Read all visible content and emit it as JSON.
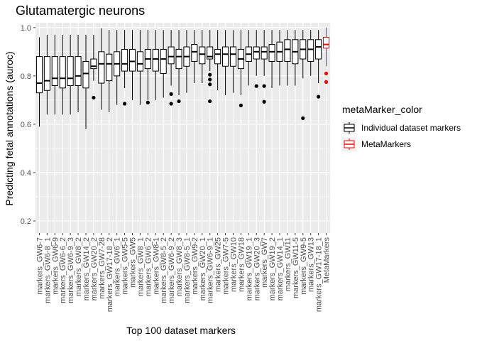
{
  "chart_data": {
    "type": "boxplot",
    "title": "Glutamatergic neurons",
    "xlabel": "Top 100 dataset markers",
    "ylabel": "Predicting fetal annotations (auroc)",
    "ylim": [
      0.15,
      1.02
    ],
    "yticks": [
      0.2,
      0.4,
      0.6,
      0.8,
      1.0
    ],
    "ytick_labels": [
      "0.2",
      "0.4",
      "0.6",
      "0.8",
      "1.0"
    ],
    "grid": true,
    "legend": {
      "title": "metaMarker_color",
      "placement": "right",
      "entries": [
        {
          "label": "Individual dataset markers",
          "color": "#000000"
        },
        {
          "label": "MetaMarkers",
          "color": "#ff0000"
        }
      ]
    },
    "categories": [
      "markers_GW6-7",
      "markers_GW6-8_1",
      "markers_GW6-9",
      "markers_GW6-6_2",
      "markers_GW6-9_3",
      "markers_GW8_2",
      "markers_GW14_2",
      "markers_GW20_2",
      "markers_GW7-28",
      "markers_GW17-18_2",
      "markers_GW6_1",
      "markers_GW5-5",
      "markers_GW5",
      "markers_GW8_1",
      "markers_GW6_2",
      "markers_GW8-1",
      "markers_GW8-5_2",
      "markers_GW6-9_2",
      "markers_GW8_3",
      "markers_GW8-5_1",
      "markers_GW9-2",
      "markers_GW20_1",
      "markers_GW6-9_1",
      "markers_GW25",
      "markers_GW7-5",
      "markers_GW10",
      "markers_GW18",
      "markers_GW19_1",
      "markers_GW20_3",
      "markers_GW7",
      "markers_GW19_2",
      "markers_GW14_1",
      "markers_GW11",
      "markers_GW11-5",
      "markers_GW9-5",
      "markers_GW13",
      "markers_GW17-18_1",
      "MetaMarkers"
    ],
    "series": [
      {
        "name": "Individual dataset markers",
        "color": "#000000",
        "boxes": [
          {
            "min": 0.59,
            "q1": 0.73,
            "median": 0.77,
            "q3": 0.88,
            "max": 0.96,
            "outliers": []
          },
          {
            "min": 0.64,
            "q1": 0.74,
            "median": 0.78,
            "q3": 0.88,
            "max": 0.97,
            "outliers": []
          },
          {
            "min": 0.64,
            "q1": 0.76,
            "median": 0.79,
            "q3": 0.88,
            "max": 0.97,
            "outliers": []
          },
          {
            "min": 0.64,
            "q1": 0.75,
            "median": 0.79,
            "q3": 0.88,
            "max": 0.97,
            "outliers": []
          },
          {
            "min": 0.64,
            "q1": 0.76,
            "median": 0.79,
            "q3": 0.88,
            "max": 0.97,
            "outliers": []
          },
          {
            "min": 0.65,
            "q1": 0.76,
            "median": 0.8,
            "q3": 0.88,
            "max": 0.97,
            "outliers": []
          },
          {
            "min": 0.58,
            "q1": 0.75,
            "median": 0.81,
            "q3": 0.86,
            "max": 0.97,
            "outliers": []
          },
          {
            "min": 0.78,
            "q1": 0.83,
            "median": 0.84,
            "q3": 0.87,
            "max": 0.97,
            "outliers": [
              0.71
            ]
          },
          {
            "min": 0.66,
            "q1": 0.77,
            "median": 0.85,
            "q3": 0.9,
            "max": 0.997,
            "outliers": []
          },
          {
            "min": 0.65,
            "q1": 0.78,
            "median": 0.85,
            "q3": 0.89,
            "max": 0.99,
            "outliers": []
          },
          {
            "min": 0.68,
            "q1": 0.8,
            "median": 0.85,
            "q3": 0.9,
            "max": 0.99,
            "outliers": []
          },
          {
            "min": 0.75,
            "q1": 0.82,
            "median": 0.85,
            "q3": 0.91,
            "max": 0.99,
            "outliers": [
              0.685
            ]
          },
          {
            "min": 0.7,
            "q1": 0.82,
            "median": 0.86,
            "q3": 0.91,
            "max": 0.99,
            "outliers": []
          },
          {
            "min": 0.68,
            "q1": 0.82,
            "median": 0.85,
            "q3": 0.9,
            "max": 0.99,
            "outliers": []
          },
          {
            "min": 0.7,
            "q1": 0.83,
            "median": 0.87,
            "q3": 0.91,
            "max": 0.99,
            "outliers": [
              0.69
            ]
          },
          {
            "min": 0.7,
            "q1": 0.82,
            "median": 0.87,
            "q3": 0.91,
            "max": 0.99,
            "outliers": []
          },
          {
            "min": 0.71,
            "q1": 0.81,
            "median": 0.87,
            "q3": 0.91,
            "max": 0.99,
            "outliers": []
          },
          {
            "min": 0.76,
            "q1": 0.85,
            "median": 0.88,
            "q3": 0.92,
            "max": 0.99,
            "outliers": [
              0.725,
              0.685
            ]
          },
          {
            "min": 0.72,
            "q1": 0.83,
            "median": 0.88,
            "q3": 0.91,
            "max": 0.99,
            "outliers": [
              0.695
            ]
          },
          {
            "min": 0.73,
            "q1": 0.84,
            "median": 0.88,
            "q3": 0.92,
            "max": 0.99,
            "outliers": []
          },
          {
            "min": 0.77,
            "q1": 0.86,
            "median": 0.9,
            "q3": 0.93,
            "max": 0.99,
            "outliers": []
          },
          {
            "min": 0.77,
            "q1": 0.85,
            "median": 0.89,
            "q3": 0.92,
            "max": 0.99,
            "outliers": []
          },
          {
            "min": 0.82,
            "q1": 0.87,
            "median": 0.88,
            "q3": 0.92,
            "max": 0.99,
            "outliers": [
              0.805,
              0.785,
              0.765,
              0.695
            ]
          },
          {
            "min": 0.74,
            "q1": 0.85,
            "median": 0.89,
            "q3": 0.91,
            "max": 0.99,
            "outliers": []
          },
          {
            "min": 0.72,
            "q1": 0.84,
            "median": 0.89,
            "q3": 0.92,
            "max": 0.99,
            "outliers": []
          },
          {
            "min": 0.73,
            "q1": 0.84,
            "median": 0.89,
            "q3": 0.92,
            "max": 0.99,
            "outliers": []
          },
          {
            "min": 0.72,
            "q1": 0.83,
            "median": 0.87,
            "q3": 0.91,
            "max": 0.99,
            "outliers": [
              0.678
            ]
          },
          {
            "min": 0.76,
            "q1": 0.86,
            "median": 0.89,
            "q3": 0.92,
            "max": 0.99,
            "outliers": []
          },
          {
            "min": 0.8,
            "q1": 0.87,
            "median": 0.9,
            "q3": 0.92,
            "max": 0.99,
            "outliers": [
              0.758
            ]
          },
          {
            "min": 0.8,
            "q1": 0.87,
            "median": 0.9,
            "q3": 0.92,
            "max": 0.99,
            "outliers": [
              0.758,
              0.693
            ]
          },
          {
            "min": 0.75,
            "q1": 0.86,
            "median": 0.9,
            "q3": 0.93,
            "max": 0.99,
            "outliers": []
          },
          {
            "min": 0.76,
            "q1": 0.86,
            "median": 0.9,
            "q3": 0.94,
            "max": 0.99,
            "outliers": []
          },
          {
            "min": 0.76,
            "q1": 0.86,
            "median": 0.91,
            "q3": 0.95,
            "max": 0.99,
            "outliers": []
          },
          {
            "min": 0.76,
            "q1": 0.85,
            "median": 0.9,
            "q3": 0.95,
            "max": 0.99,
            "outliers": []
          },
          {
            "min": 0.79,
            "q1": 0.87,
            "median": 0.91,
            "q3": 0.95,
            "max": 0.99,
            "outliers": [
              0.625
            ]
          },
          {
            "min": 0.8,
            "q1": 0.86,
            "median": 0.91,
            "q3": 0.95,
            "max": 0.99,
            "outliers": []
          },
          {
            "min": 0.77,
            "q1": 0.87,
            "median": 0.92,
            "q3": 0.95,
            "max": 0.99,
            "outliers": [
              0.714
            ]
          }
        ]
      },
      {
        "name": "MetaMarkers",
        "color": "#ff0000",
        "boxes": [
          {
            "min": 0.84,
            "q1": 0.915,
            "median": 0.93,
            "q3": 0.96,
            "max": 1.0,
            "outliers": [
              0.81,
              0.775
            ]
          }
        ]
      }
    ]
  }
}
